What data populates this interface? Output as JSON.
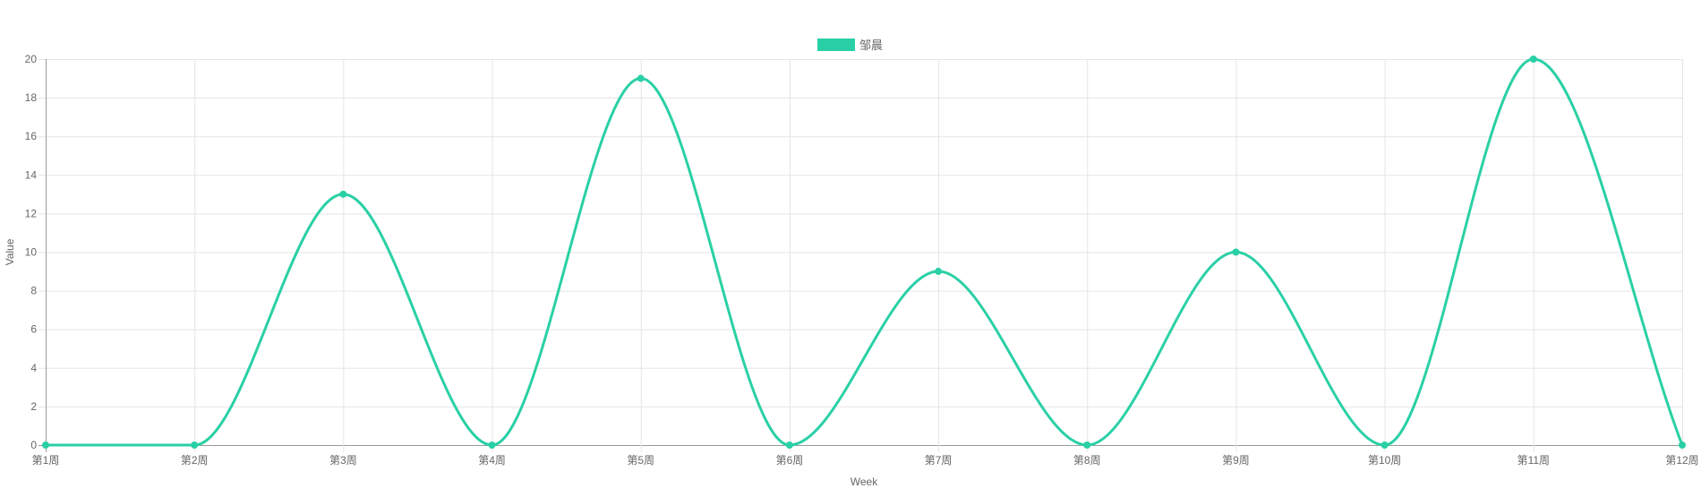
{
  "chart_data": {
    "type": "line",
    "categories": [
      "第1周",
      "第2周",
      "第3周",
      "第4周",
      "第5周",
      "第6周",
      "第7周",
      "第8周",
      "第9周",
      "第10周",
      "第11周",
      "第12周"
    ],
    "series": [
      {
        "name": "邹晨",
        "values": [
          0,
          0,
          13,
          0,
          19,
          0,
          9,
          0,
          10,
          0,
          20,
          0
        ],
        "color": "#2ad0a5"
      }
    ],
    "xlabel": "Week",
    "ylabel": "Value",
    "ylim": [
      0,
      20
    ],
    "yticks": [
      0,
      2,
      4,
      6,
      8,
      10,
      12,
      14,
      16,
      18,
      20
    ],
    "grid": true,
    "legend": "top-center",
    "smooth": true,
    "colors": {
      "grid": "#e5e5e5",
      "axis": "#999999",
      "text": "#666666"
    }
  }
}
